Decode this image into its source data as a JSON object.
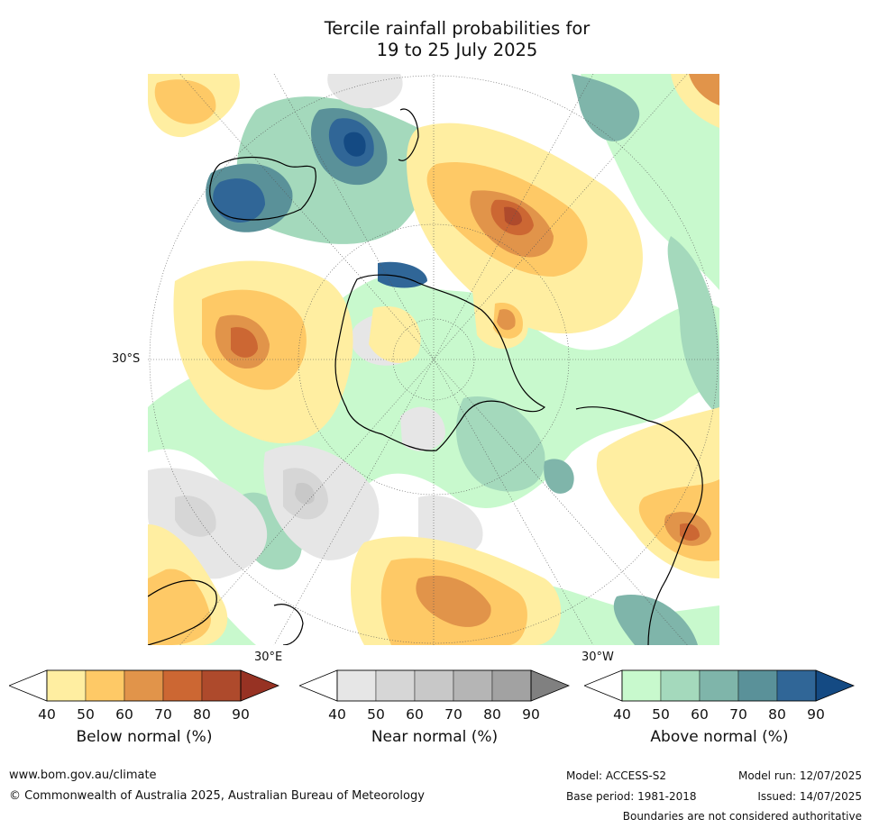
{
  "title_line1": "Tercile rainfall probabilities for",
  "title_line2": "19 to 25 July 2025",
  "map": {
    "labels": {
      "lat_30s": "30°S",
      "lon_30e": "30°E",
      "lon_30w": "30°W"
    },
    "colors": {
      "below": [
        "#ffeea1",
        "#fec966",
        "#e1944a",
        "#cc6733",
        "#ae4a2c",
        "#973223"
      ],
      "near": [
        "#e6e6e6",
        "#d6d6d6",
        "#c8c8c8",
        "#b5b5b5",
        "#a2a2a2",
        "#808080"
      ],
      "above": [
        "#c8f9cd",
        "#a4d9bc",
        "#7fb5aa",
        "#5a9199",
        "#306697",
        "#144a83"
      ]
    }
  },
  "legends": [
    {
      "id": "below",
      "label": "Below normal (%)",
      "ticks": [
        "40",
        "50",
        "60",
        "70",
        "80",
        "90"
      ]
    },
    {
      "id": "near",
      "label": "Near normal (%)",
      "ticks": [
        "40",
        "50",
        "60",
        "70",
        "80",
        "90"
      ]
    },
    {
      "id": "above",
      "label": "Above normal (%)",
      "ticks": [
        "40",
        "50",
        "60",
        "70",
        "80",
        "90"
      ]
    }
  ],
  "footer": {
    "website": "www.bom.gov.au/climate",
    "copyright": "© Commonwealth of Australia 2025, Australian Bureau of Meteorology",
    "model": "Model: ACCESS-S2",
    "base_period": "Base period: 1981-2018",
    "model_run": "Model run: 12/07/2025",
    "issued": "Issued: 14/07/2025",
    "disclaimer": "Boundaries are not considered authoritative"
  }
}
